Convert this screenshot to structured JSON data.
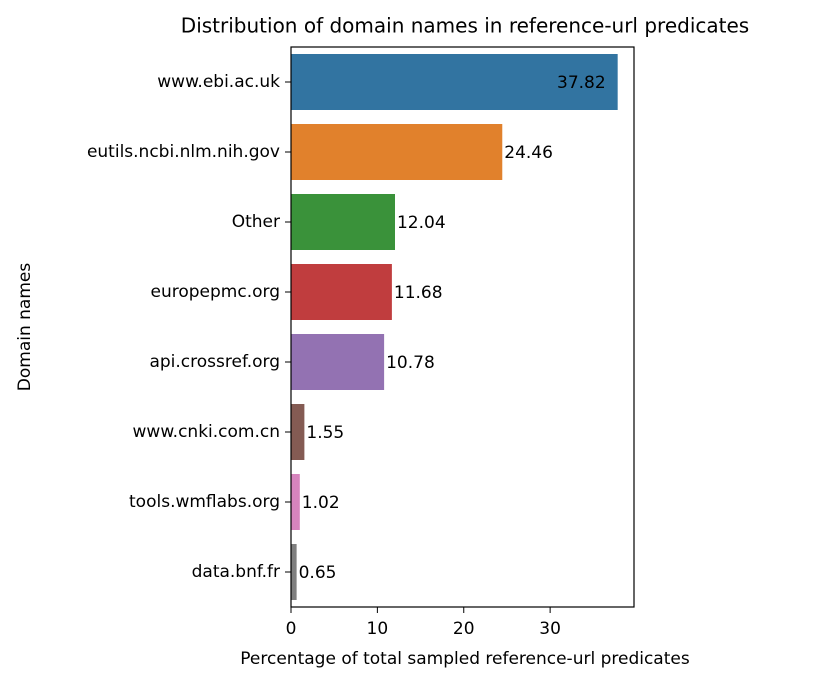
{
  "chart_data": {
    "type": "barh",
    "title": "Distribution of domain names in reference-url predicates",
    "xlabel": "Percentage of total sampled reference-url predicates",
    "ylabel": "Domain names",
    "categories": [
      "www.ebi.ac.uk",
      "eutils.ncbi.nlm.nih.gov",
      "Other",
      "europepmc.org",
      "api.crossref.org",
      "www.cnki.com.cn",
      "tools.wmflabs.org",
      "data.bnf.fr"
    ],
    "values": [
      37.82,
      24.46,
      12.04,
      11.68,
      10.78,
      1.55,
      1.02,
      0.65
    ],
    "colors": [
      "#3274a1",
      "#e1812c",
      "#3a923a",
      "#c03d3e",
      "#9372b2",
      "#845b53",
      "#d684bd",
      "#7f7f7f"
    ],
    "xlim": [
      0,
      39.71
    ],
    "xticks": [
      0,
      10,
      20,
      30
    ]
  }
}
